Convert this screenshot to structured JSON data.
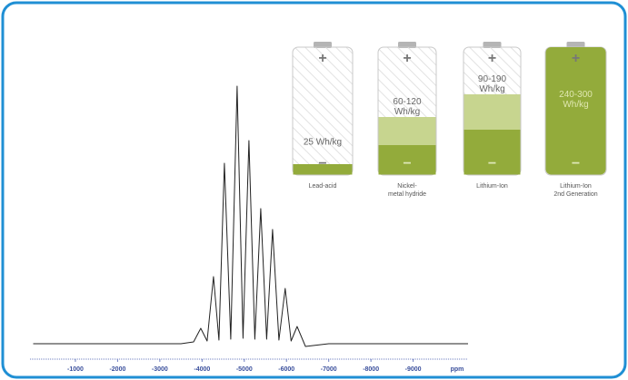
{
  "chart_data": {
    "type": "line",
    "x": [
      0,
      -3500,
      -3800,
      -3970,
      -4120,
      -4270,
      -4400,
      -4530,
      -4680,
      -4830,
      -4970,
      -5110,
      -5250,
      -5390,
      -5530,
      -5670,
      -5820,
      -5970,
      -6110,
      -6250,
      -6450,
      -7000,
      -10300
    ],
    "series": [
      {
        "color": "#222222",
        "values": [
          0,
          0,
          2,
          17,
          3,
          74,
          4,
          199,
          5,
          284,
          6,
          224,
          5,
          149,
          5,
          126,
          4,
          61,
          3,
          19,
          -3,
          0,
          0
        ]
      }
    ],
    "xlim": [
      0,
      -10300
    ],
    "xticks": [
      -1000,
      -2000,
      -3000,
      -4000,
      -5000,
      -6000,
      -7000,
      -8000,
      -9000
    ],
    "xlabel": "ppm",
    "ylim": [
      -20,
      300
    ]
  },
  "infographic": {
    "plus": "+",
    "minus": "−",
    "batteries": [
      {
        "energy": "25 Wh/kg",
        "name": "Lead-acid"
      },
      {
        "energy": "60-120 Wh/kg",
        "name": "Nickel-metal hydride"
      },
      {
        "energy": "90-190 Wh/kg",
        "name": "Lithium-Ion"
      },
      {
        "energy": "240-300 Wh/kg",
        "name": "Lithium-Ion 2nd Generation"
      }
    ]
  }
}
